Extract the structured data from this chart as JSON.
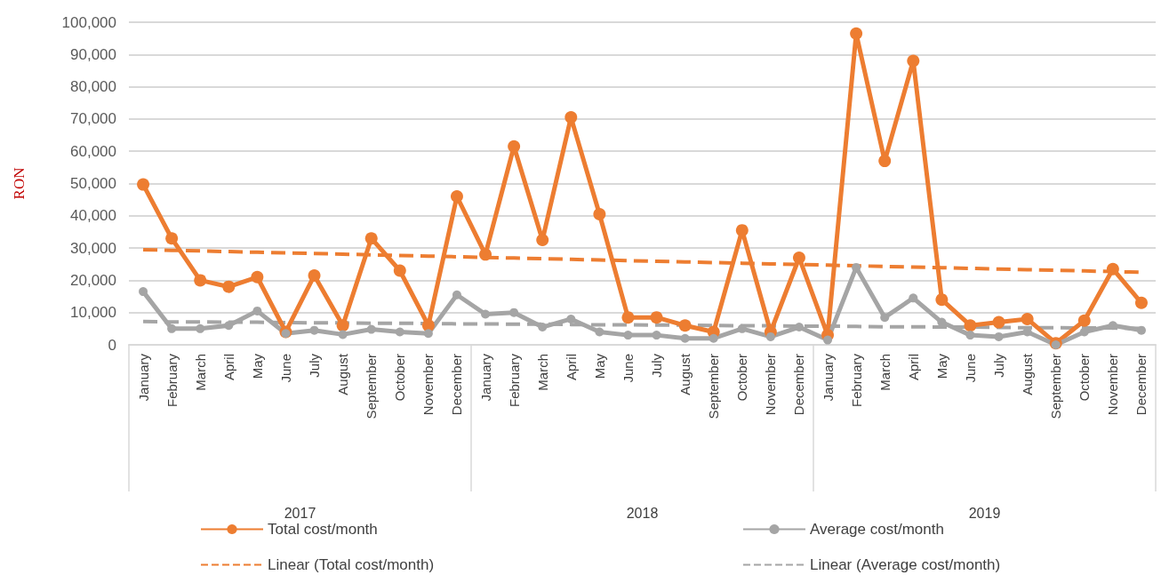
{
  "chart_data": {
    "type": "line",
    "ylabel": "RON",
    "categories": [
      "January",
      "February",
      "March",
      "April",
      "May",
      "June",
      "July",
      "August",
      "September",
      "October",
      "November",
      "December",
      "January",
      "February",
      "March",
      "April",
      "May",
      "June",
      "July",
      "August",
      "September",
      "October",
      "November",
      "December",
      "January",
      "February",
      "March",
      "April",
      "May",
      "June",
      "July",
      "August",
      "September",
      "October",
      "November",
      "December"
    ],
    "annotations": [
      "2017",
      "2018",
      "2019"
    ],
    "ylim": [
      0,
      100000
    ],
    "yticks": [
      0,
      {
        "value": 10000,
        "label": "10,000"
      },
      {
        "value": 20000,
        "label": "20,000"
      },
      {
        "value": 30000,
        "label": "30,000"
      },
      {
        "value": 40000,
        "label": "40,000"
      },
      {
        "value": 50000,
        "label": "50,000"
      },
      {
        "value": 60000,
        "label": "60,000"
      },
      {
        "value": 70000,
        "label": "70,000"
      },
      {
        "value": 80000,
        "label": "80,000"
      },
      {
        "value": 90000,
        "label": "90,000"
      },
      {
        "value": 100000,
        "label": "100,000"
      }
    ],
    "grid": "y",
    "legend": "bottom",
    "series": [
      {
        "name": "Total cost/month",
        "color": "#ed7d31",
        "marker": "circle",
        "line_style": "solid",
        "values": [
          49700,
          33000,
          20000,
          18000,
          21000,
          4000,
          21500,
          6000,
          33000,
          23000,
          6000,
          46000,
          28000,
          61500,
          32500,
          70500,
          40500,
          8500,
          8500,
          6000,
          4000,
          35500,
          4000,
          27000,
          3000,
          96500,
          57000,
          88000,
          14000,
          6000,
          7000,
          8000,
          500,
          7500,
          23500,
          13000
        ]
      },
      {
        "name": "Average cost/month",
        "color": "#a5a5a5",
        "marker": "circle",
        "line_style": "solid",
        "values": [
          16500,
          5000,
          5000,
          6000,
          10500,
          3500,
          4500,
          3200,
          4800,
          4000,
          3500,
          15500,
          9500,
          10000,
          5500,
          8000,
          4000,
          3000,
          3000,
          2000,
          2000,
          5000,
          2500,
          5500,
          1500,
          24000,
          8500,
          14500,
          7000,
          3000,
          2500,
          4000,
          0,
          4000,
          6000,
          4500
        ]
      },
      {
        "name": "Linear (Total cost/month)",
        "color": "#ed7d31",
        "marker": "none",
        "line_style": "dashed",
        "values": [
          29500,
          29300,
          29100,
          28900,
          28700,
          28500,
          28300,
          28100,
          27900,
          27700,
          27500,
          27300,
          27100,
          26900,
          26700,
          26500,
          26300,
          26100,
          25900,
          25700,
          25500,
          25300,
          25100,
          24900,
          24700,
          24500,
          24300,
          24100,
          23900,
          23700,
          23500,
          23300,
          23100,
          22900,
          22700,
          22500
        ]
      },
      {
        "name": "Linear (Average cost/month)",
        "color": "#a5a5a5",
        "marker": "none",
        "line_style": "dashed",
        "values": [
          7200,
          7100,
          7100,
          7000,
          7000,
          6900,
          6800,
          6800,
          6700,
          6700,
          6600,
          6500,
          6500,
          6400,
          6400,
          6300,
          6200,
          6200,
          6100,
          6100,
          6000,
          5900,
          5900,
          5800,
          5800,
          5700,
          5600,
          5600,
          5500,
          5500,
          5400,
          5300,
          5300,
          5200,
          5200,
          5100
        ]
      }
    ]
  }
}
